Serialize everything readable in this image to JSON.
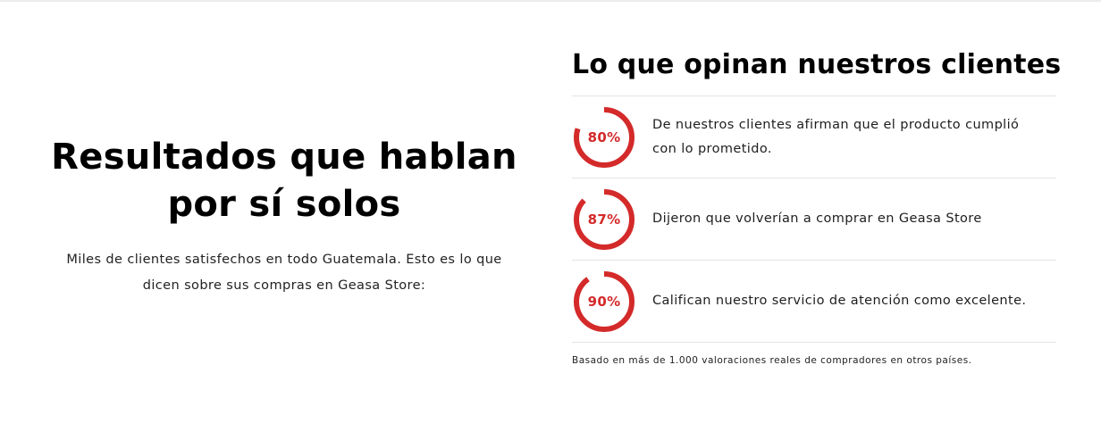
{
  "left": {
    "heading_line1": "Resultados que hablan",
    "heading_line2": "por sí solos",
    "description_line1": "Miles de clientes satisfechos en todo Guatemala. Esto es lo que",
    "description_line2": "dicen sobre sus compras en Geasa Store:"
  },
  "right": {
    "heading": "Lo que opinan nuestros clientes",
    "stats": [
      {
        "value": 0.8,
        "label": "80%",
        "text_line1": "De nuestros clientes afirman que el producto cumplió",
        "text_line2": "con lo prometido."
      },
      {
        "value": 0.87,
        "label": "87%",
        "text_line1": "Dijeron que volverían a comprar en Geasa Store",
        "text_line2": ""
      },
      {
        "value": 0.9,
        "label": "90%",
        "text_line1": "Califican nuestro servicio de atención como excelente.",
        "text_line2": ""
      }
    ],
    "footnote": "Basado en más de 1.000 valoraciones reales de compradores en otros países."
  },
  "colors": {
    "accent": "#d42a2a",
    "ring_track": "#ffffff",
    "divider": "#e3e3e3",
    "text": "#111111"
  }
}
